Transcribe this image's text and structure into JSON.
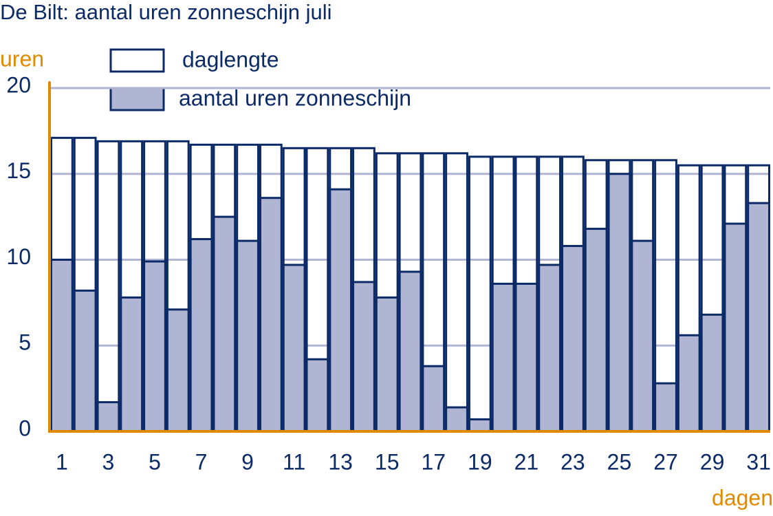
{
  "chart_data": {
    "type": "bar",
    "title": "De Bilt: aantal uren zonneschijn juli",
    "y_label": "uren",
    "x_label": "dagen",
    "categories": [
      1,
      null,
      3,
      null,
      5,
      null,
      7,
      null,
      9,
      null,
      11,
      null,
      13,
      null,
      15,
      null,
      17,
      null,
      19,
      null,
      21,
      null,
      23,
      null,
      25,
      null,
      27,
      null,
      29,
      null,
      31
    ],
    "series": [
      {
        "name": "daglengte",
        "color": "#ffffff",
        "values": [
          17.1,
          17.1,
          16.9,
          16.9,
          16.9,
          16.9,
          16.7,
          16.7,
          16.7,
          16.7,
          16.5,
          16.5,
          16.5,
          16.5,
          16.2,
          16.2,
          16.2,
          16.2,
          16.0,
          16.0,
          16.0,
          16.0,
          16.0,
          15.8,
          15.8,
          15.8,
          15.8,
          15.5,
          15.5,
          15.5,
          15.5
        ]
      },
      {
        "name": "aantal uren zonneschijn",
        "color": "#b0b5d3",
        "values": [
          10.0,
          8.2,
          1.7,
          7.8,
          9.9,
          7.1,
          11.2,
          12.5,
          11.1,
          13.6,
          9.7,
          4.2,
          14.1,
          8.7,
          7.8,
          9.3,
          3.8,
          1.4,
          0.7,
          8.6,
          8.6,
          9.7,
          10.8,
          11.8,
          15.0,
          11.1,
          2.8,
          5.6,
          6.8,
          12.1,
          13.3
        ]
      }
    ],
    "ylim": [
      0,
      20
    ],
    "yticks": [
      0,
      5,
      10,
      15,
      20
    ],
    "grid": true
  }
}
